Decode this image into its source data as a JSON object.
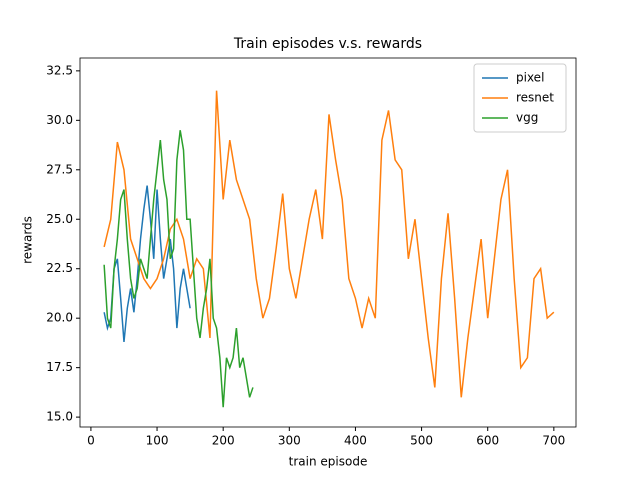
{
  "chart_data": {
    "type": "line",
    "title": "Train episodes v.s. rewards",
    "x_label": "train episode",
    "y_label": "rewards",
    "xlim": [
      -16.5,
      733.5
    ],
    "ylim": [
      14.5,
      33.15
    ],
    "xticks": [
      0,
      100,
      200,
      300,
      400,
      500,
      600,
      700
    ],
    "yticks": [
      {
        "value": 15,
        "label": "15.0"
      },
      {
        "value": 17.5,
        "label": "17.5"
      },
      {
        "value": 20,
        "label": "20.0"
      },
      {
        "value": 22.5,
        "label": "22.5"
      },
      {
        "value": 25,
        "label": "25.0"
      },
      {
        "value": 27.5,
        "label": "27.5"
      },
      {
        "value": 30,
        "label": "30.0"
      },
      {
        "value": 32.5,
        "label": "32.5"
      }
    ],
    "legend": "upper right",
    "series": [
      {
        "name": "pixel",
        "color": "#1f77b4",
        "x": [
          20,
          25,
          30,
          35,
          40,
          45,
          50,
          55,
          60,
          65,
          70,
          75,
          80,
          85,
          90,
          95,
          100,
          105,
          110,
          115,
          120,
          125,
          130,
          135,
          140,
          145,
          150
        ],
        "values": [
          20.3,
          19.5,
          20,
          22.5,
          23,
          21,
          18.8,
          20.5,
          21.5,
          20.3,
          22,
          24,
          25.5,
          26.7,
          25,
          23,
          26.5,
          24,
          22,
          23,
          24,
          22.5,
          19.5,
          21.5,
          22.5,
          21.5,
          20.5
        ]
      },
      {
        "name": "resnet",
        "color": "#ff7f0e",
        "x": [
          20,
          30,
          40,
          50,
          60,
          70,
          80,
          90,
          100,
          110,
          120,
          130,
          140,
          150,
          160,
          170,
          180,
          190,
          200,
          210,
          220,
          230,
          240,
          250,
          260,
          270,
          280,
          290,
          300,
          310,
          320,
          330,
          340,
          350,
          360,
          370,
          380,
          390,
          400,
          410,
          420,
          430,
          440,
          450,
          460,
          470,
          480,
          490,
          500,
          510,
          520,
          530,
          540,
          550,
          560,
          570,
          580,
          590,
          600,
          610,
          620,
          630,
          640,
          650,
          660,
          670,
          680,
          690,
          700
        ],
        "values": [
          23.6,
          25,
          28.9,
          27.5,
          24,
          23,
          22,
          21.5,
          22,
          23,
          24.5,
          25,
          24,
          22,
          23,
          22.5,
          19,
          31.5,
          26,
          29,
          27,
          26,
          25,
          22,
          20,
          21,
          23.5,
          26.3,
          22.5,
          21,
          23,
          25,
          26.5,
          24,
          30.3,
          28,
          26,
          22,
          21,
          19.5,
          21,
          20,
          29,
          30.5,
          28,
          27.5,
          23,
          25,
          22,
          19,
          16.5,
          22,
          25.3,
          21,
          16,
          19,
          21.5,
          24,
          20,
          23,
          26,
          27.5,
          22,
          17.5,
          18,
          22,
          22.5,
          20,
          20.3
        ]
      },
      {
        "name": "vgg",
        "color": "#2ca02c",
        "x": [
          20,
          25,
          30,
          35,
          40,
          45,
          50,
          55,
          60,
          65,
          70,
          75,
          80,
          85,
          90,
          95,
          100,
          105,
          110,
          115,
          120,
          125,
          130,
          135,
          140,
          145,
          150,
          155,
          160,
          165,
          170,
          175,
          180,
          185,
          190,
          195,
          200,
          205,
          210,
          215,
          220,
          225,
          230,
          235,
          240,
          245
        ],
        "values": [
          22.7,
          20,
          19.5,
          22.5,
          24,
          26,
          26.5,
          24,
          22,
          21,
          21.5,
          23,
          22.5,
          22,
          24,
          26,
          27.5,
          29,
          27,
          26,
          23,
          23.5,
          28,
          29.5,
          28.5,
          25,
          25,
          22.5,
          20,
          19,
          20.5,
          21.5,
          23,
          20,
          19.5,
          18,
          15.5,
          18,
          17.5,
          18,
          19.5,
          17.5,
          18,
          17,
          16,
          16.5
        ]
      }
    ]
  }
}
